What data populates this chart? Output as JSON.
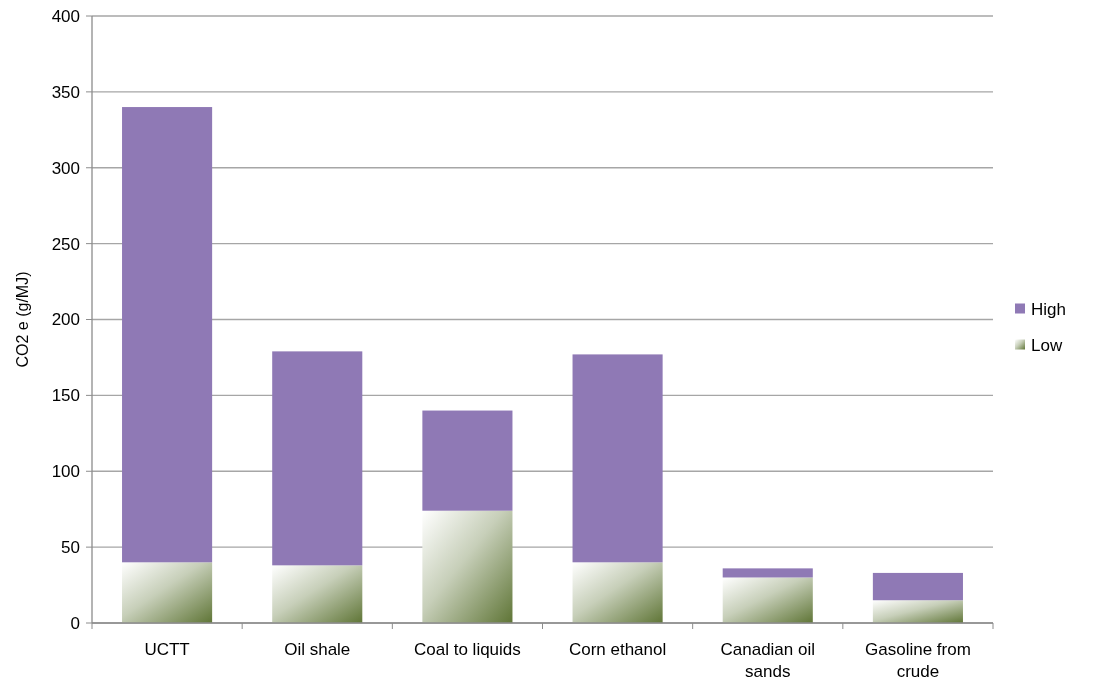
{
  "chart_data": {
    "type": "bar",
    "ylabel": "CO2 e (g/MJ)",
    "categories": [
      "UCTT",
      "Oil shale",
      "Coal to liquids",
      "Corn ethanol",
      "Canadian oil sands",
      "Gasoline from crude"
    ],
    "series": [
      {
        "name": "Low",
        "color": "#5f7536",
        "values": [
          40,
          38,
          74,
          40,
          30,
          15
        ]
      },
      {
        "name": "High",
        "color": "#8f79b5",
        "values": [
          300,
          141,
          66,
          137,
          6,
          18
        ]
      }
    ],
    "stacked": true,
    "ylim": [
      0,
      400
    ],
    "yticks": [
      0,
      50,
      100,
      150,
      200,
      250,
      300,
      350,
      400
    ],
    "grid": "y",
    "legend": "right"
  }
}
